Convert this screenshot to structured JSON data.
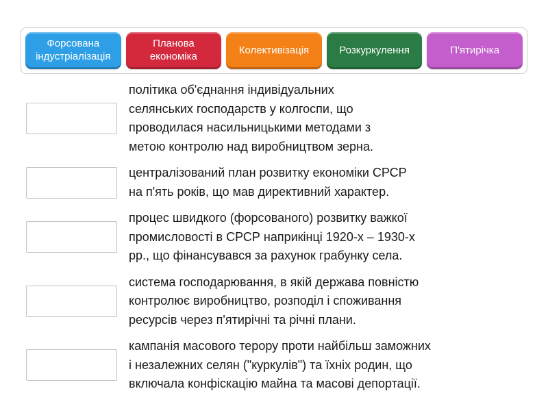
{
  "tiles": [
    {
      "label": "Форсована індустріалізація",
      "color": "#2e9fe6"
    },
    {
      "label": "Планова економіка",
      "color": "#d4293d"
    },
    {
      "label": "Колективізація",
      "color": "#f48118"
    },
    {
      "label": "Розкуркулення",
      "color": "#2a7c44"
    },
    {
      "label": "П'ятирічка",
      "color": "#c45ecc"
    }
  ],
  "match_rows": [
    {
      "definition_lines": [
        "політика об'єднання індивідуальних",
        "селянських господарств у колгоспи, що",
        "проводилася насильницькими методами з",
        "метою контролю над виробництвом зерна."
      ]
    },
    {
      "definition_lines": [
        "централізований план розвитку економіки СРСР",
        "на п'ять років, що мав директивний характер."
      ]
    },
    {
      "definition_lines": [
        "процес швидкого (форсованого) розвитку важкої",
        "промисловості в СРСР наприкінці 1920-х – 1930-х",
        "рр., що фінансувався за рахунок грабунку села."
      ]
    },
    {
      "definition_lines": [
        "система господарювання, в якій держава повністю",
        "контролює виробництво, розподіл і споживання",
        "ресурсів через п'ятирічні та річні плани."
      ]
    },
    {
      "definition_lines": [
        "кампанія масового терору проти найбільш заможних",
        "і незалежних селян (\"куркулів\") та їхніх родин, що",
        "включала конфіскацію майна та масові депортації."
      ]
    }
  ]
}
